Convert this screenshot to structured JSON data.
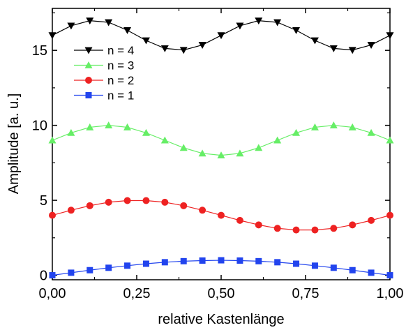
{
  "chart_data": {
    "type": "line",
    "title": "",
    "xlabel": "relative Kastenlänge",
    "ylabel": "Amplitude [a. u.]",
    "xlim": [
      0,
      1
    ],
    "ylim": [
      -0.3,
      17.8
    ],
    "x_ticks": [
      0,
      0.25,
      0.5,
      0.75,
      1.0
    ],
    "x_tick_labels": [
      "0,00",
      "0,25",
      "0,50",
      "0,75",
      "1,00"
    ],
    "y_ticks": [
      0,
      5,
      10,
      15
    ],
    "y_tick_labels": [
      "0",
      "5",
      "10",
      "15"
    ],
    "grid": false,
    "legend_position": "top-left",
    "x": [
      0,
      0.0556,
      0.1111,
      0.1667,
      0.2222,
      0.2778,
      0.3333,
      0.3889,
      0.4444,
      0.5,
      0.5556,
      0.6111,
      0.6667,
      0.7222,
      0.7778,
      0.8333,
      0.8889,
      0.9444,
      1.0
    ],
    "series": [
      {
        "name": "n = 4",
        "color": "#000000",
        "marker": "triangle-down",
        "values": [
          16.0,
          16.64,
          16.98,
          16.87,
          16.34,
          15.66,
          15.13,
          15.02,
          15.36,
          16.0,
          16.64,
          16.98,
          16.87,
          16.34,
          15.66,
          15.13,
          15.02,
          15.36,
          16.0
        ]
      },
      {
        "name": "n = 3",
        "color": "#66ee66",
        "marker": "triangle-up",
        "values": [
          9.0,
          9.5,
          9.87,
          10.0,
          9.87,
          9.5,
          9.0,
          8.5,
          8.13,
          8.0,
          8.13,
          8.5,
          9.0,
          9.5,
          9.87,
          10.0,
          9.87,
          9.5,
          9.0
        ]
      },
      {
        "name": "n = 2",
        "color": "#ee2222",
        "marker": "circle",
        "values": [
          4.0,
          4.34,
          4.64,
          4.87,
          4.98,
          4.98,
          4.87,
          4.64,
          4.34,
          4.0,
          3.66,
          3.36,
          3.13,
          3.02,
          3.02,
          3.13,
          3.36,
          3.66,
          4.0
        ]
      },
      {
        "name": "n = 1",
        "color": "#2244ee",
        "marker": "square",
        "values": [
          0.0,
          0.17,
          0.34,
          0.5,
          0.64,
          0.77,
          0.87,
          0.94,
          0.98,
          1.0,
          0.98,
          0.94,
          0.87,
          0.77,
          0.64,
          0.5,
          0.34,
          0.17,
          0.0
        ]
      }
    ]
  }
}
